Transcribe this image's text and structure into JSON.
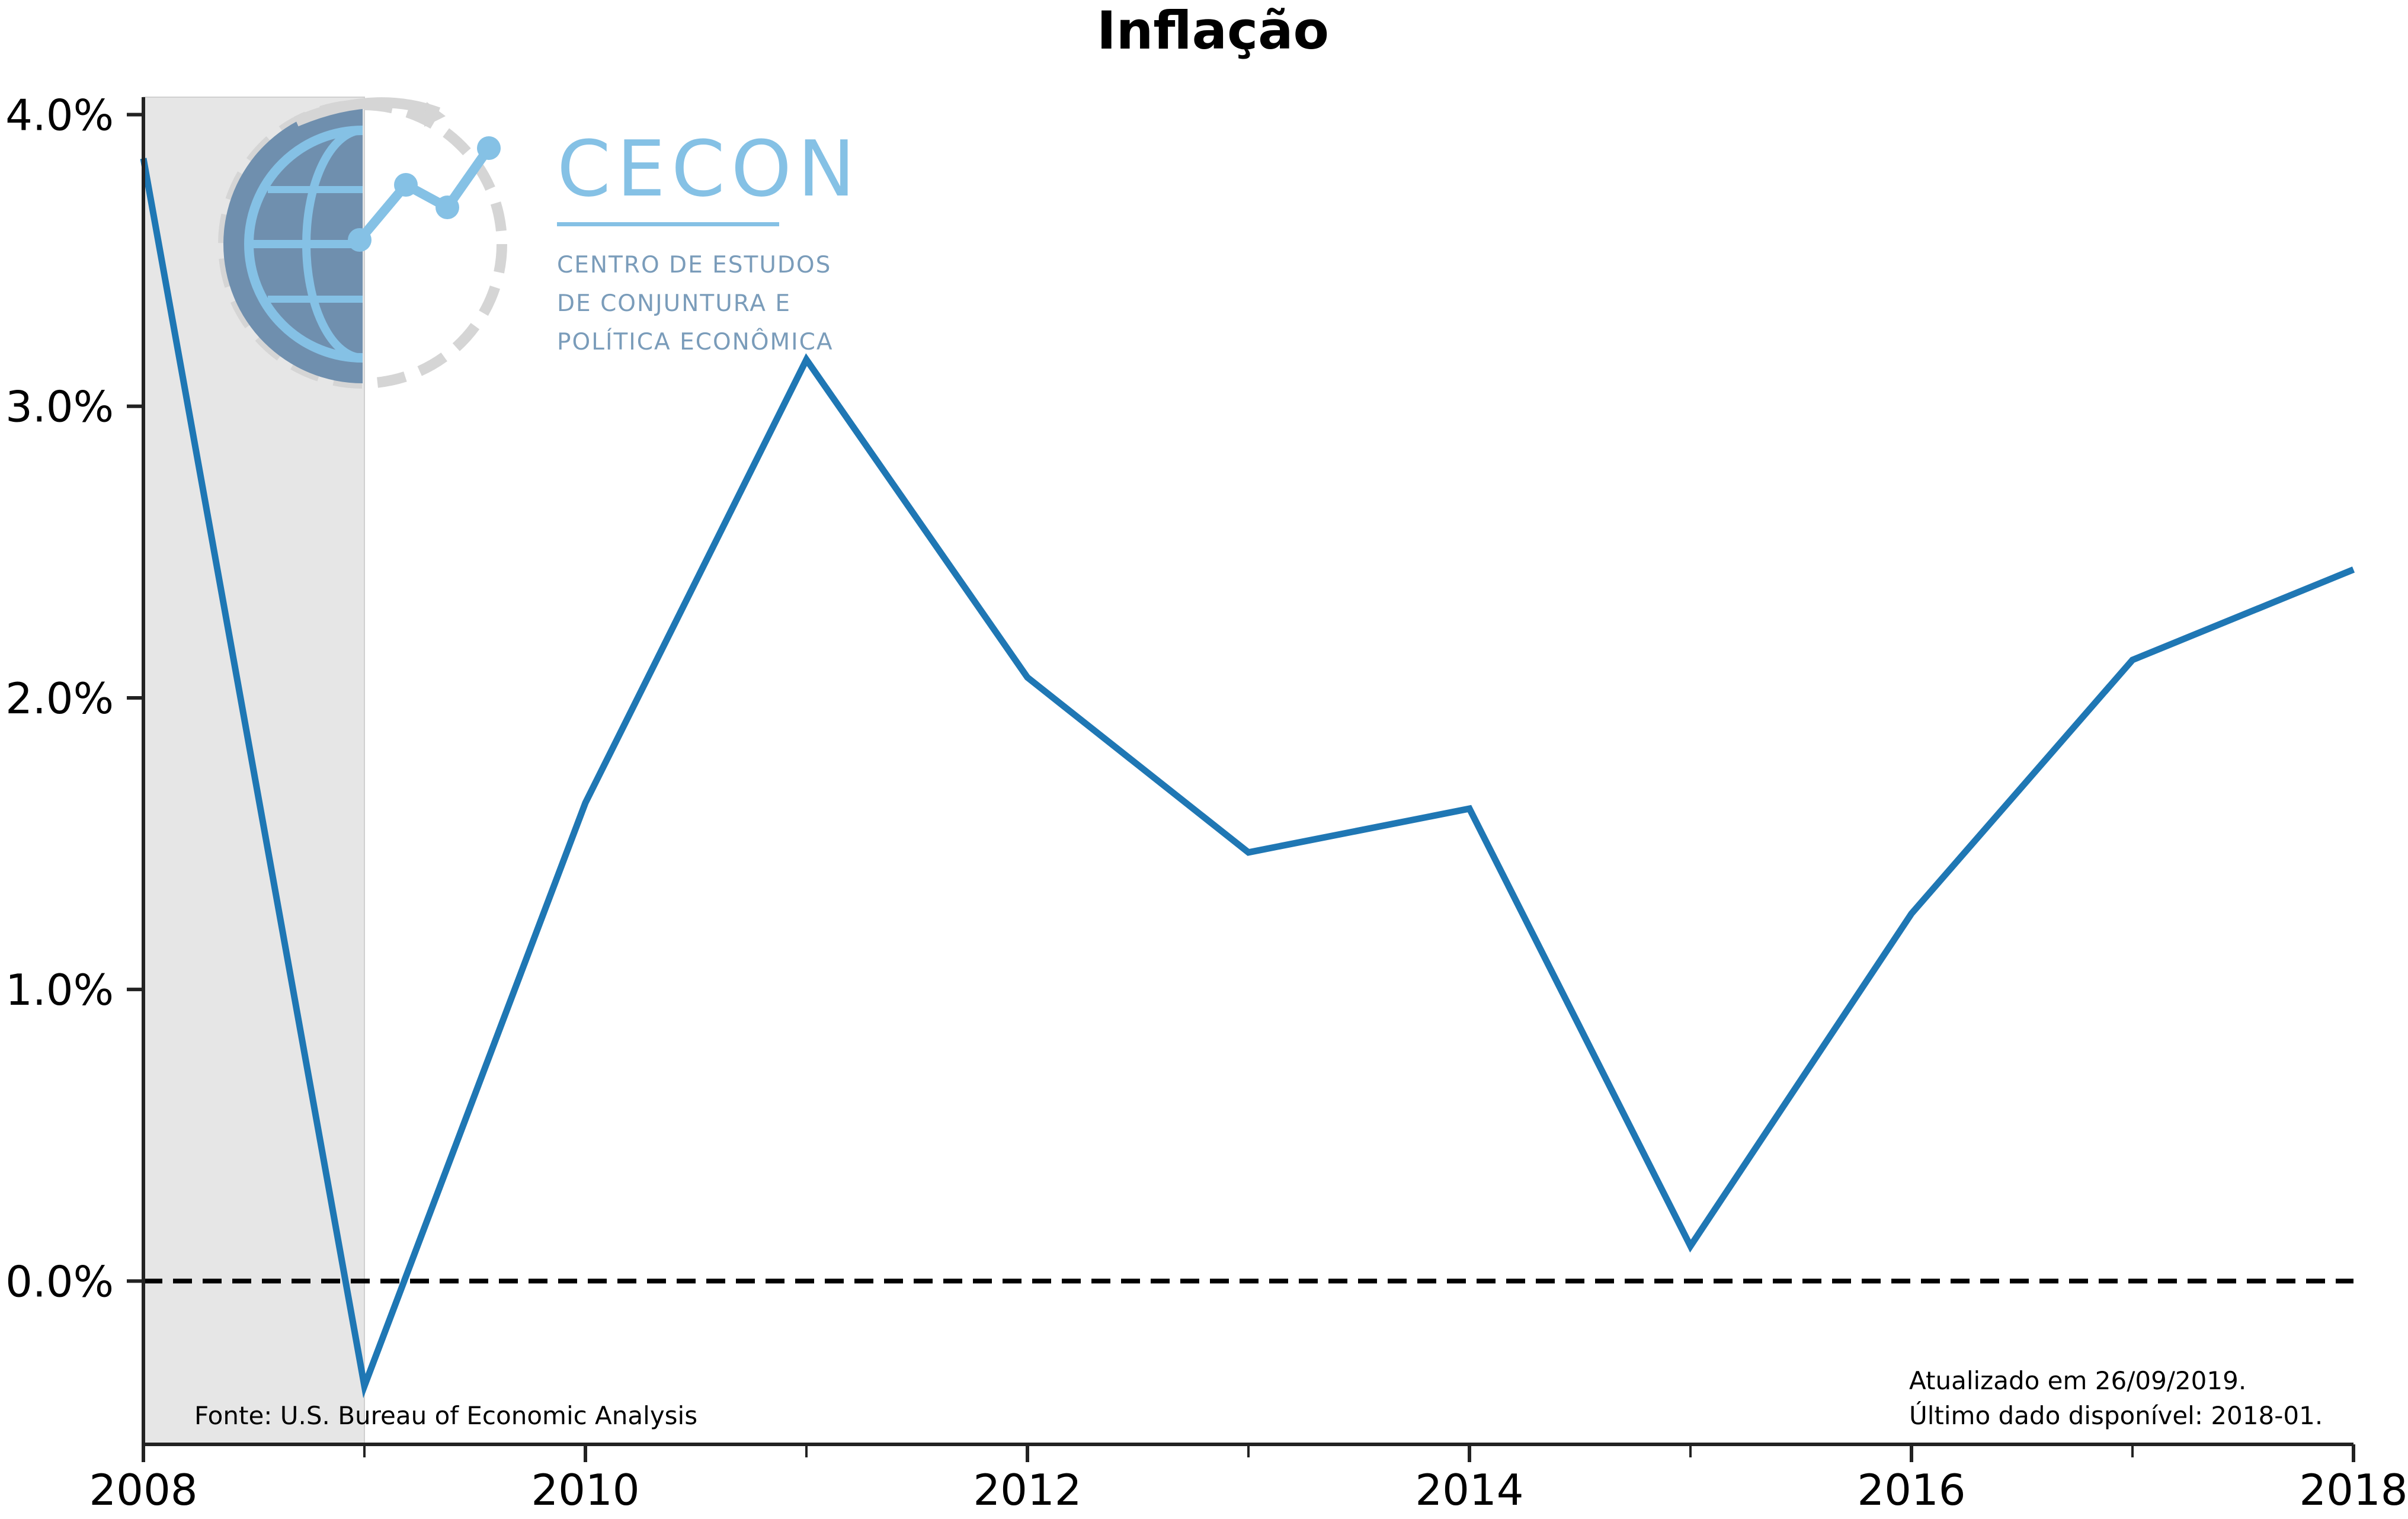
{
  "chart_data": {
    "type": "line",
    "title": "Inflação",
    "xlabel": "",
    "ylabel": "",
    "x": [
      2008,
      2009,
      2010,
      2011,
      2012,
      2013,
      2014,
      2015,
      2016,
      2017,
      2018
    ],
    "series": [
      {
        "values": [
          3.85,
          -0.36,
          1.64,
          3.16,
          2.07,
          1.47,
          1.62,
          0.12,
          1.26,
          2.13,
          2.44
        ]
      }
    ],
    "xlim": [
      2008,
      2018
    ],
    "ylim": [
      -0.56,
      4.06
    ],
    "x_ticks_major": [
      {
        "value": 2008,
        "label": "2008"
      },
      {
        "value": 2010,
        "label": "2010"
      },
      {
        "value": 2012,
        "label": "2012"
      },
      {
        "value": 2014,
        "label": "2014"
      },
      {
        "value": 2016,
        "label": "2016"
      },
      {
        "value": 2018,
        "label": "2018"
      }
    ],
    "x_ticks_minor": [
      2009,
      2011,
      2013,
      2015,
      2017
    ],
    "y_ticks": [
      {
        "value": 0,
        "label": "0.0%"
      },
      {
        "value": 1,
        "label": "1.0%"
      },
      {
        "value": 2,
        "label": "2.0%"
      },
      {
        "value": 3,
        "label": "3.0%"
      },
      {
        "value": 4,
        "label": "4.0%"
      }
    ],
    "recession_band": {
      "from": 2008,
      "to": 2009
    },
    "reference_line": {
      "y": 0,
      "style": "dashed"
    },
    "grid": false,
    "legend": "none",
    "source_note": "Fonte: U.S. Bureau of Economic Analysis",
    "update_notes": [
      "Atualizado em 26/09/2019.",
      "Último dado disponível: 2018-01."
    ]
  },
  "logo": {
    "name": "CECON",
    "subtitle_lines": [
      "CENTRO DE ESTUDOS",
      "DE CONJUNTURA E",
      "POLÍTICA ECONÔMICA"
    ]
  },
  "colors": {
    "line": "#1f77b4",
    "band": "#e6e6e6",
    "axis": "#222222",
    "logo_accent": "#85c1e5",
    "logo_globe": "#6f8fae"
  }
}
